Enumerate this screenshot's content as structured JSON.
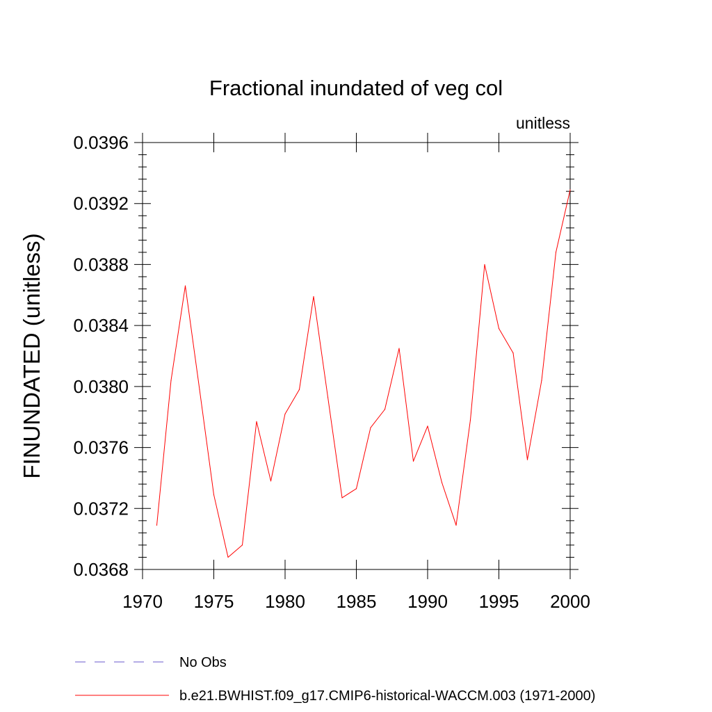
{
  "chart_data": {
    "type": "line",
    "title": "Fractional inundated of veg col",
    "units_label": "unitless",
    "xlabel": "",
    "ylabel": "FINUNDATED  (unitless)",
    "xlim": [
      1970,
      2000
    ],
    "ylim": [
      0.0368,
      0.0396
    ],
    "x_ticks": [
      1970,
      1975,
      1980,
      1985,
      1990,
      1995,
      2000
    ],
    "x_tick_labels": [
      "1970",
      "1975",
      "1980",
      "1985",
      "1990",
      "1995",
      "2000"
    ],
    "y_ticks": [
      0.0368,
      0.0372,
      0.0376,
      0.038,
      0.0384,
      0.0388,
      0.0392,
      0.0396
    ],
    "y_tick_labels": [
      "0.0368",
      "0.0372",
      "0.0376",
      "0.0380",
      "0.0384",
      "0.0388",
      "0.0392",
      "0.0396"
    ],
    "grid": false,
    "legend_position": "bottom",
    "series": [
      {
        "name": "b.e21.BWHIST.f09_g17.CMIP6-historical-WACCM.003 (1971-2000)",
        "color": "#ff0000",
        "style": "solid",
        "x": [
          1971,
          1972,
          1973,
          1974,
          1975,
          1976,
          1977,
          1978,
          1979,
          1980,
          1981,
          1982,
          1983,
          1984,
          1985,
          1986,
          1987,
          1988,
          1989,
          1990,
          1991,
          1992,
          1993,
          1994,
          1995,
          1996,
          1997,
          1998,
          1999,
          2000
        ],
        "y": [
          0.03709,
          0.03804,
          0.03866,
          0.03798,
          0.03729,
          0.03688,
          0.03696,
          0.03777,
          0.03738,
          0.03782,
          0.03798,
          0.03859,
          0.03793,
          0.03727,
          0.03733,
          0.03773,
          0.03785,
          0.03825,
          0.03751,
          0.03774,
          0.03737,
          0.03709,
          0.03778,
          0.0388,
          0.03838,
          0.03822,
          0.03752,
          0.03804,
          0.03888,
          0.03929
        ]
      }
    ],
    "legend": [
      {
        "label": "No Obs",
        "color": "#6a5acd",
        "style": "dashed"
      },
      {
        "label": "b.e21.BWHIST.f09_g17.CMIP6-historical-WACCM.003 (1971-2000)",
        "color": "#ff0000",
        "style": "solid"
      }
    ]
  }
}
